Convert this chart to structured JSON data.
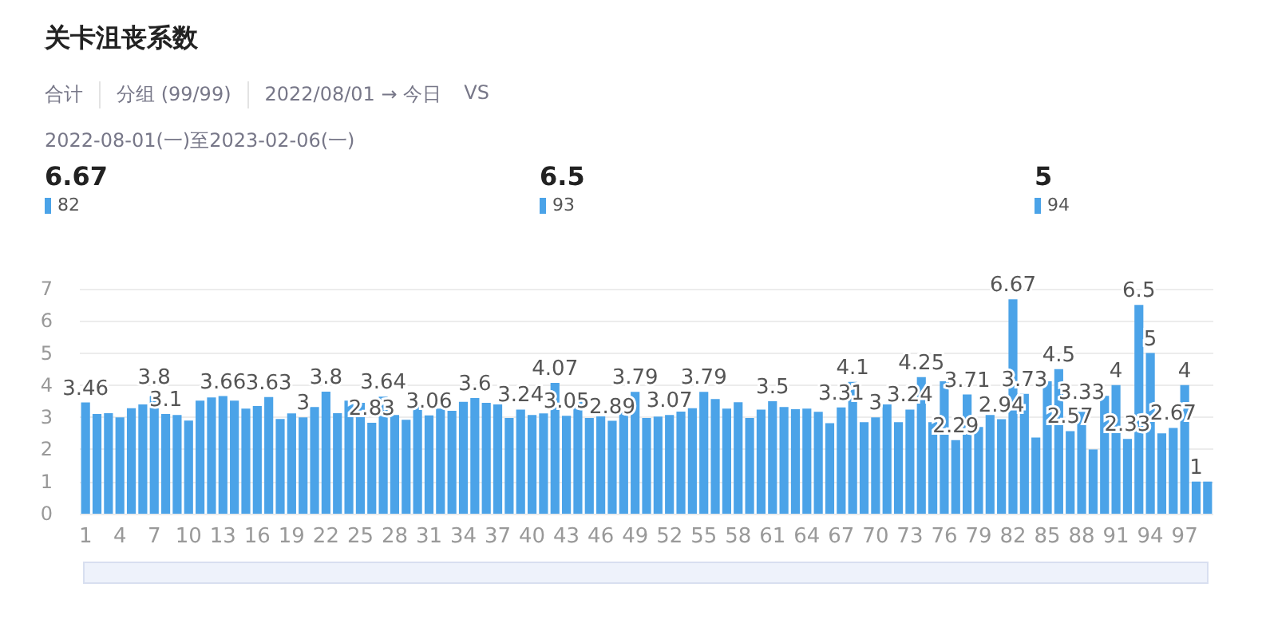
{
  "chart_data": {
    "type": "bar",
    "title": "关卡沮丧系数",
    "subtitle": "2022-08-01(一)至2023-02-06(一)",
    "annotations": [
      "合计",
      "分组 (99/99)",
      "2022/08/01 → 今日",
      "VS",
      "6.67",
      "82",
      "6.5",
      "93",
      "5",
      "94"
    ],
    "categories": [
      "1",
      null,
      null,
      "4",
      null,
      null,
      "7",
      null,
      null,
      "10",
      null,
      null,
      "13",
      null,
      null,
      "16",
      null,
      null,
      "19",
      null,
      null,
      "22",
      null,
      null,
      "25",
      null,
      null,
      "28",
      null,
      null,
      "31",
      null,
      null,
      "34",
      null,
      null,
      "37",
      null,
      null,
      "40",
      null,
      null,
      "43",
      null,
      null,
      "46",
      null,
      null,
      "49",
      null,
      null,
      "52",
      null,
      null,
      "55",
      null,
      null,
      "58",
      null,
      null,
      "61",
      null,
      null,
      "64",
      null,
      null,
      "67",
      null,
      null,
      "70",
      null,
      null,
      "73",
      null,
      null,
      "76",
      null,
      null,
      "79",
      null,
      null,
      "82",
      null,
      null,
      "85",
      null,
      null,
      "88",
      null,
      null,
      "91",
      null,
      null,
      "94",
      null,
      null,
      "97",
      null,
      null
    ],
    "values": [
      3.46,
      3.1,
      3.13,
      3.0,
      3.28,
      3.4,
      3.8,
      3.1,
      3.07,
      2.9,
      3.52,
      3.62,
      3.66,
      3.52,
      3.27,
      3.35,
      3.63,
      2.95,
      3.12,
      3,
      3.32,
      3.8,
      3.13,
      3.52,
      3.45,
      2.83,
      3.64,
      3.07,
      2.92,
      3.37,
      3.06,
      3.27,
      3.2,
      3.48,
      3.6,
      3.45,
      3.4,
      2.98,
      3.24,
      3.07,
      3.12,
      4.07,
      3.05,
      3.65,
      2.98,
      3.03,
      2.89,
      3.24,
      3.79,
      2.98,
      3.02,
      3.07,
      3.18,
      3.28,
      3.79,
      3.57,
      3.27,
      3.47,
      2.98,
      3.24,
      3.5,
      3.32,
      3.25,
      3.27,
      3.17,
      2.82,
      3.31,
      4.1,
      2.85,
      3,
      3.4,
      2.85,
      3.24,
      4.25,
      2.85,
      4.12,
      2.29,
      3.71,
      2.7,
      3.07,
      2.94,
      6.67,
      3.73,
      2.37,
      4.12,
      4.5,
      2.57,
      3.33,
      2.0,
      3.67,
      4,
      2.33,
      6.5,
      5,
      2.5,
      2.67,
      4,
      1,
      1
    ],
    "value_labels": [
      "3.46",
      null,
      null,
      null,
      null,
      null,
      "3.8",
      "3.1",
      null,
      null,
      null,
      null,
      "3.66",
      null,
      null,
      null,
      "3.63",
      null,
      null,
      "3",
      null,
      "3.8",
      null,
      null,
      null,
      "2.83",
      "3.64",
      null,
      null,
      null,
      "3.06",
      null,
      null,
      null,
      "3.6",
      null,
      null,
      null,
      "3.24",
      null,
      null,
      "4.07",
      "3.05",
      null,
      null,
      null,
      "2.89",
      null,
      "3.79",
      null,
      null,
      "3.07",
      null,
      null,
      "3.79",
      null,
      null,
      null,
      null,
      null,
      "3.5",
      null,
      null,
      null,
      null,
      null,
      "3.31",
      "4.1",
      null,
      "3",
      null,
      null,
      "3.24",
      "4.25",
      null,
      null,
      "2.29",
      "3.71",
      null,
      null,
      "2.94",
      "6.67",
      "3.73",
      null,
      null,
      "4.5",
      "2.57",
      "3.33",
      null,
      null,
      "4",
      "2.33",
      "6.5",
      "5",
      null,
      "2.67",
      "4",
      "1",
      null
    ],
    "color": "#4ba3e8",
    "ylim": [
      0,
      7
    ],
    "yticks": [
      0,
      1,
      2,
      3,
      4,
      5,
      6,
      7
    ],
    "grid": "y"
  }
}
